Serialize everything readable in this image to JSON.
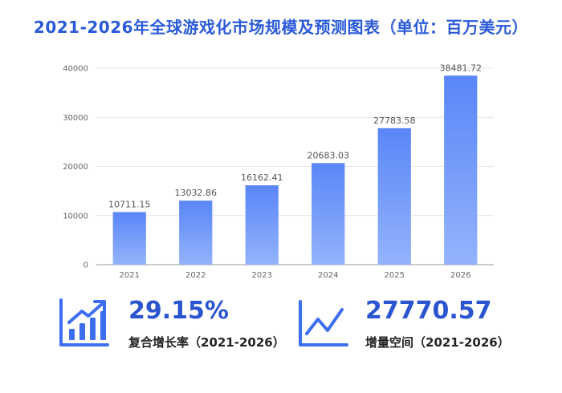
{
  "title": "2021-2026年全球游戏化市场规模及预测图表（单位：百万美元）",
  "chart_data": {
    "type": "bar",
    "categories": [
      "2021",
      "2022",
      "2023",
      "2024",
      "2025",
      "2026"
    ],
    "values": [
      10711.15,
      13032.86,
      16162.41,
      20683.03,
      27783.58,
      38481.72
    ],
    "value_labels": [
      "10711.15",
      "13032.86",
      "16162.41",
      "20683.03",
      "27783.58",
      "38481.72"
    ],
    "yticks": [
      "0",
      "10000",
      "20000",
      "30000",
      "40000"
    ],
    "ylim": [
      0,
      40000
    ],
    "grid": true,
    "bar_color_top": "#5a86f8",
    "bar_color_bottom": "#93b3fb",
    "xlabel": "",
    "ylabel": ""
  },
  "stats": [
    {
      "icon": "bar-growth-icon",
      "value": "29.15%",
      "label": "复合增长率（2021-2026）"
    },
    {
      "icon": "line-growth-icon",
      "value": "27770.57",
      "label": "增量空间（2021-2026）"
    }
  ],
  "colors": {
    "accent": "#2a5ad8",
    "icon": "#3d6ef0"
  }
}
